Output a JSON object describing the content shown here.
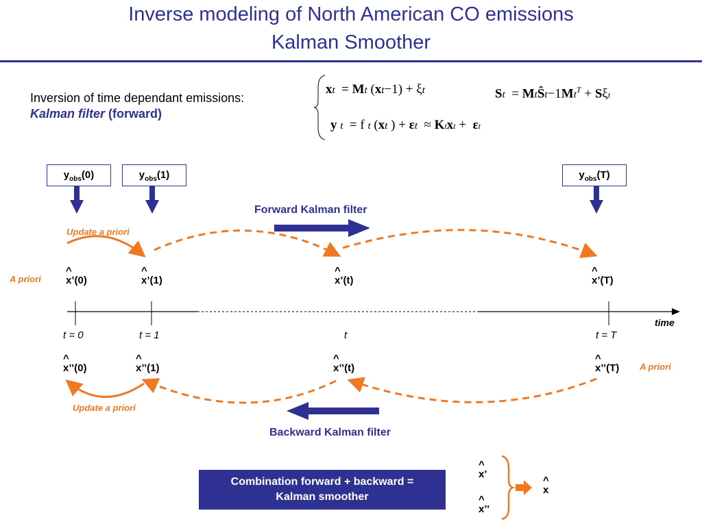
{
  "title": {
    "line1": "Inverse modeling of North American CO emissions",
    "line2": "Kalman Smoother"
  },
  "intro": {
    "text": "Inversion of time dependant emissions:",
    "kalman_filter": "Kalman filter",
    "forward": "(forward)"
  },
  "observations": {
    "obs0": "(0)",
    "obs1": "(1)",
    "obsT": "(T)",
    "y": "y",
    "sub": "obs"
  },
  "labels": {
    "forward_filter": "Forward Kalman filter",
    "backward_filter": "Backward Kalman filter",
    "update_apriori_top": "Update a priori",
    "update_apriori_bottom": "Update a priori",
    "apriori_left": "A priori",
    "apriori_right": "A priori",
    "time": "time"
  },
  "forward_states": [
    "x’(0)",
    "x’(1)",
    "x’(t)",
    "x’(T)"
  ],
  "backward_states": [
    "x’’(0)",
    "x’’(1)",
    "x’’(t)",
    "x’’(T)"
  ],
  "ticks": [
    "t = 0",
    "t = 1",
    "t",
    "t = T"
  ],
  "combination": {
    "line1": "Combination forward + backward =",
    "line2": "Kalman smoother",
    "x_prime": "x’",
    "x_double_prime": "x’’",
    "x_result": "x"
  },
  "colors": {
    "title_blue": "#2e3192",
    "arrow_blue": "#2e3192",
    "orange": "#f07820"
  }
}
